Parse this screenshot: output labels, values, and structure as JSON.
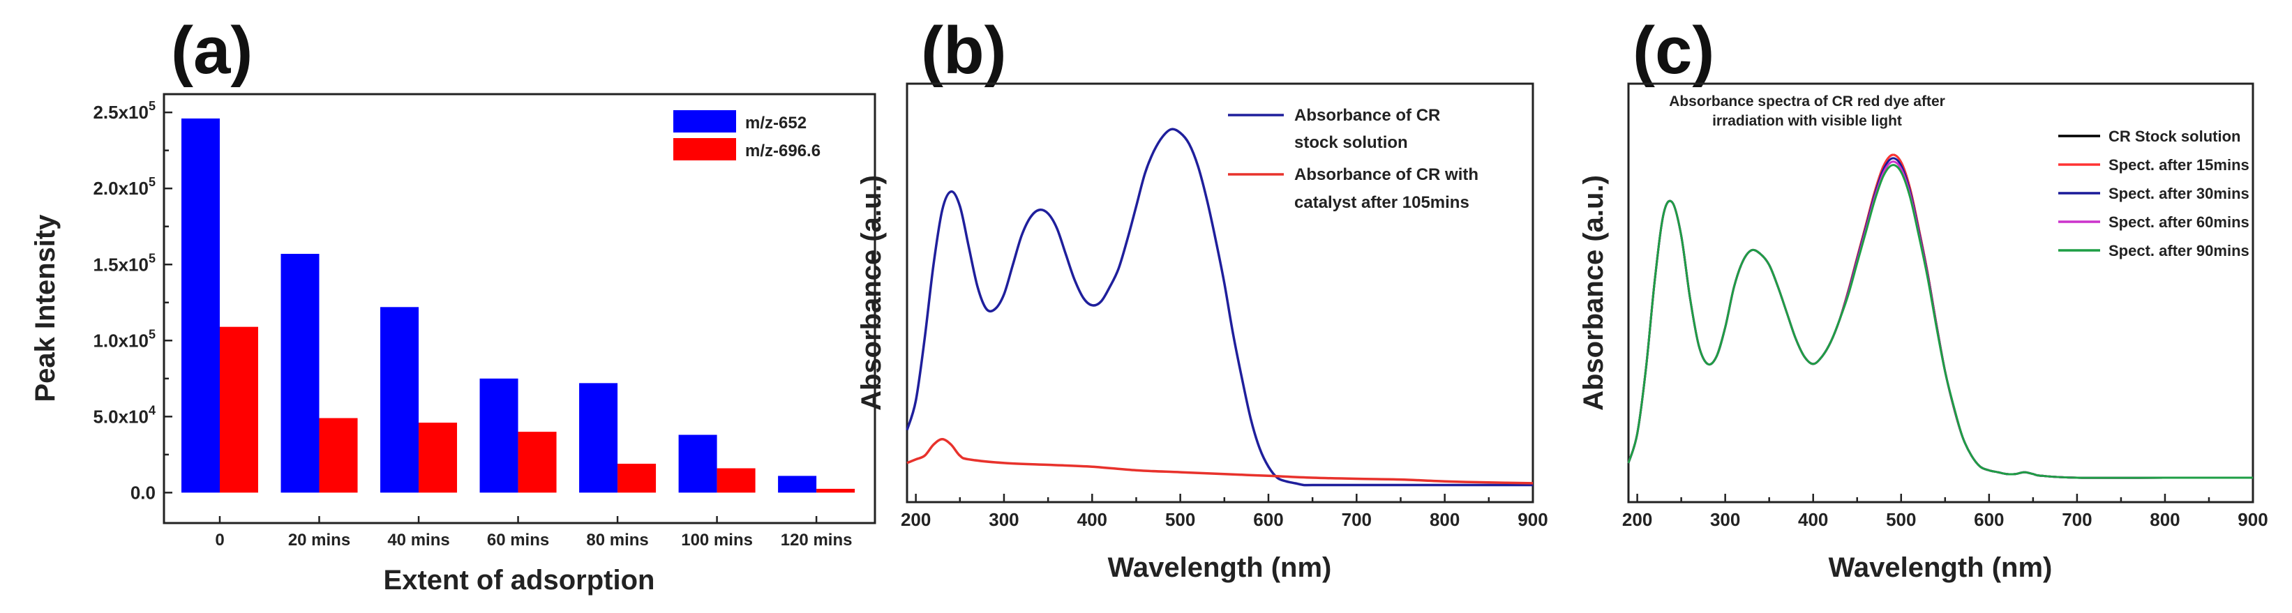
{
  "chart_data": [
    {
      "panel": "(a)",
      "type": "bar",
      "title": "",
      "xlabel": "Extent of adsorption",
      "ylabel": "Peak Intensity",
      "ylim": [
        -20000,
        262000
      ],
      "categories": [
        "0",
        "20 mins",
        "40 mins",
        "60 mins",
        "80 mins",
        "100 mins",
        "120 mins"
      ],
      "yticks": [
        0,
        50000,
        100000,
        150000,
        200000,
        250000
      ],
      "ytick_labels": [
        {
          "mant": "0.0",
          "exp": ""
        },
        {
          "mant": "5.0x10",
          "exp": "4"
        },
        {
          "mant": "1.0x10",
          "exp": "5"
        },
        {
          "mant": "1.5x10",
          "exp": "5"
        },
        {
          "mant": "2.0x10",
          "exp": "5"
        },
        {
          "mant": "2.5x10",
          "exp": "5"
        }
      ],
      "legend_position": "top-right",
      "series": [
        {
          "name": "m/z-652",
          "color": "#0000ff",
          "values": [
            246000,
            157000,
            122000,
            75000,
            72000,
            38000,
            11000
          ]
        },
        {
          "name": "m/z-696.6",
          "color": "#ff0000",
          "values": [
            109000,
            49000,
            46000,
            40000,
            19000,
            16000,
            2500
          ]
        }
      ]
    },
    {
      "panel": "(b)",
      "type": "line",
      "xlabel": "Wavelength (nm)",
      "ylabel": "Absorbance (a.u.)",
      "xlim": [
        190,
        900
      ],
      "ylim": [
        0,
        1
      ],
      "xticks": [
        200,
        300,
        400,
        500,
        600,
        700,
        800,
        900
      ],
      "legend_position": "top-right",
      "series": [
        {
          "name_lines": [
            "Absorbance of CR",
            "stock solution"
          ],
          "color": "#1f1f9c",
          "x": [
            190,
            200,
            210,
            220,
            230,
            240,
            250,
            260,
            270,
            280,
            290,
            300,
            310,
            320,
            330,
            340,
            350,
            360,
            370,
            380,
            390,
            400,
            410,
            420,
            430,
            440,
            450,
            460,
            470,
            480,
            490,
            500,
            510,
            520,
            530,
            540,
            550,
            560,
            570,
            580,
            590,
            600,
            610,
            620,
            630,
            640,
            650,
            700,
            750,
            800,
            850,
            900
          ],
          "y": [
            0.17,
            0.25,
            0.42,
            0.62,
            0.77,
            0.82,
            0.78,
            0.67,
            0.56,
            0.5,
            0.5,
            0.54,
            0.62,
            0.7,
            0.75,
            0.77,
            0.76,
            0.72,
            0.65,
            0.58,
            0.53,
            0.51,
            0.52,
            0.56,
            0.61,
            0.69,
            0.78,
            0.87,
            0.93,
            0.97,
            0.99,
            0.98,
            0.95,
            0.89,
            0.8,
            0.69,
            0.57,
            0.43,
            0.31,
            0.2,
            0.12,
            0.07,
            0.04,
            0.03,
            0.025,
            0.02,
            0.02,
            0.02,
            0.02,
            0.02,
            0.02,
            0.02
          ]
        },
        {
          "name_lines": [
            "Absorbance of CR with",
            "catalyst after 105mins"
          ],
          "color": "#e8322c",
          "x": [
            190,
            200,
            210,
            220,
            230,
            240,
            250,
            260,
            300,
            350,
            400,
            450,
            500,
            550,
            600,
            650,
            700,
            750,
            800,
            850,
            900
          ],
          "y": [
            0.08,
            0.09,
            0.1,
            0.13,
            0.145,
            0.13,
            0.1,
            0.09,
            0.08,
            0.075,
            0.07,
            0.06,
            0.055,
            0.05,
            0.045,
            0.04,
            0.037,
            0.035,
            0.03,
            0.027,
            0.025
          ]
        }
      ]
    },
    {
      "panel": "(c)",
      "type": "line",
      "annotation_lines": [
        "Absorbance spectra of CR red dye after",
        "irradiation with visible light"
      ],
      "xlabel": "Wavelength (nm)",
      "ylabel": "Absorbance (a.u.)",
      "xlim": [
        190,
        900
      ],
      "ylim": [
        0,
        1
      ],
      "xticks": [
        200,
        300,
        400,
        500,
        600,
        700,
        800,
        900
      ],
      "legend_position": "top-right",
      "series": [
        {
          "name": "CR Stock solution",
          "color": "#000000",
          "peak_scale": 1.0
        },
        {
          "name": "Spect. after 15mins",
          "color": "#ff3333",
          "peak_scale": 1.0
        },
        {
          "name": "Spect. after 30mins",
          "color": "#1a1a99",
          "peak_scale": 0.985
        },
        {
          "name": "Spect. after 60mins",
          "color": "#cc33cc",
          "peak_scale": 0.97
        },
        {
          "name": "Spect. after 90mins",
          "color": "#1e9e45",
          "peak_scale": 0.955
        }
      ],
      "base_x": [
        190,
        200,
        210,
        220,
        230,
        240,
        250,
        260,
        270,
        280,
        290,
        300,
        310,
        320,
        330,
        340,
        350,
        360,
        370,
        380,
        390,
        400,
        410,
        420,
        430,
        440,
        450,
        460,
        470,
        480,
        490,
        500,
        510,
        520,
        530,
        540,
        550,
        560,
        570,
        580,
        590,
        600,
        610,
        620,
        630,
        640,
        650,
        660,
        700,
        800,
        900
      ],
      "base_y": [
        0.08,
        0.16,
        0.34,
        0.58,
        0.76,
        0.79,
        0.7,
        0.53,
        0.4,
        0.35,
        0.37,
        0.45,
        0.56,
        0.63,
        0.66,
        0.65,
        0.62,
        0.56,
        0.49,
        0.42,
        0.37,
        0.35,
        0.37,
        0.41,
        0.47,
        0.55,
        0.64,
        0.73,
        0.82,
        0.89,
        0.92,
        0.9,
        0.83,
        0.72,
        0.6,
        0.46,
        0.33,
        0.23,
        0.15,
        0.1,
        0.07,
        0.06,
        0.055,
        0.05,
        0.05,
        0.055,
        0.05,
        0.045,
        0.04,
        0.04,
        0.04
      ]
    }
  ]
}
